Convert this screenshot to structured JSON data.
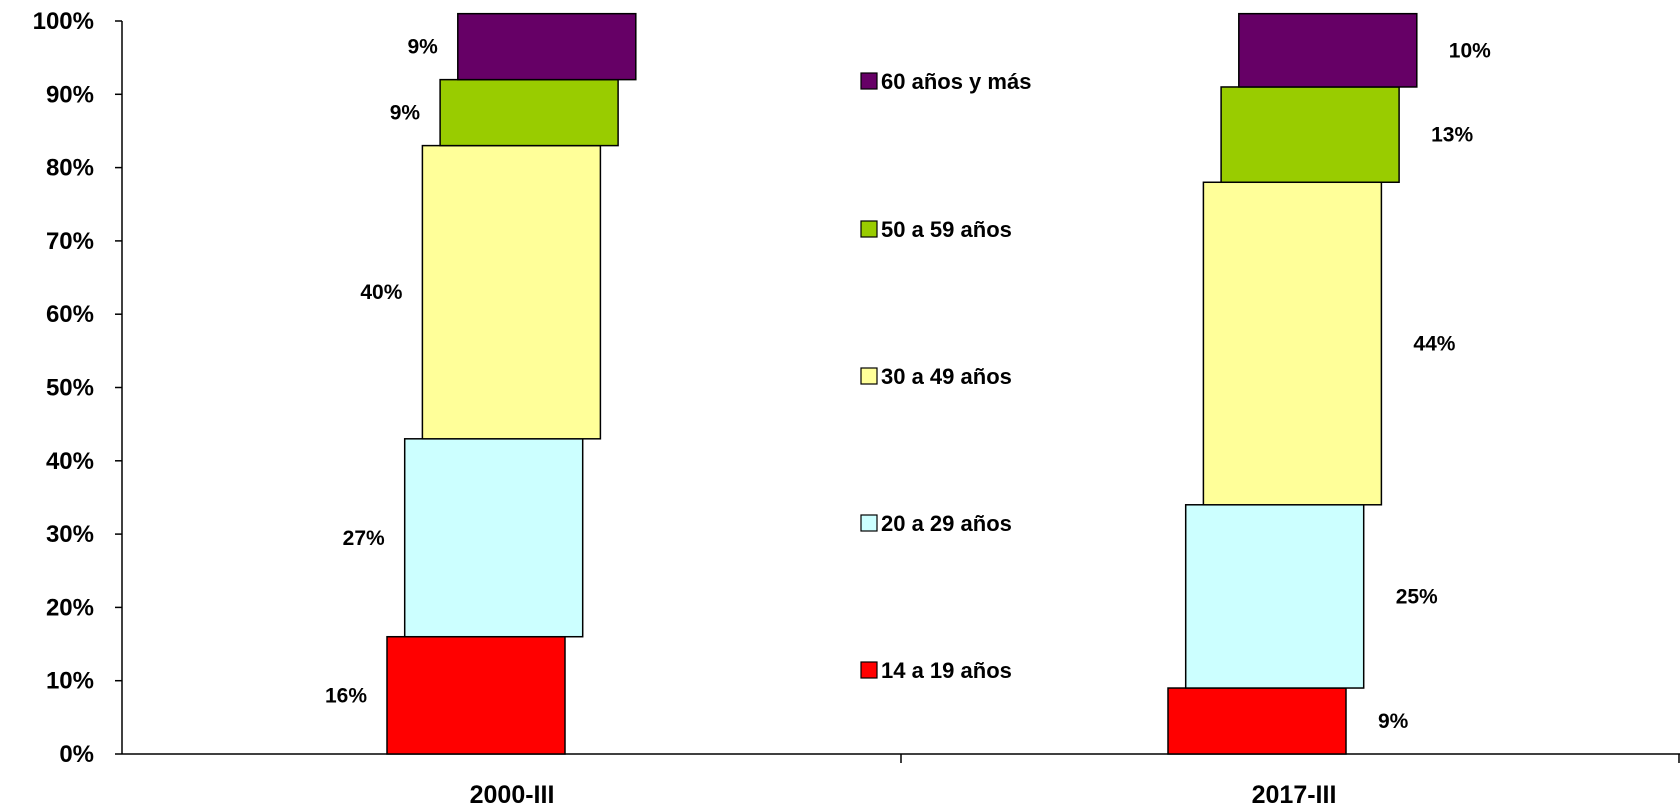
{
  "chart_data": {
    "type": "bar",
    "stacked": true,
    "categories": [
      "2000-III",
      "2017-III"
    ],
    "series": [
      {
        "name": "14 a 19 años",
        "values": [
          16,
          9
        ],
        "labels": [
          "16%",
          "9%"
        ],
        "color": "#ff0000"
      },
      {
        "name": "20 a 29 años",
        "values": [
          27,
          25
        ],
        "labels": [
          "27%",
          "25%"
        ],
        "color": "#ccffff"
      },
      {
        "name": "30 a 49 años",
        "values": [
          40,
          44
        ],
        "labels": [
          "40%",
          "44%"
        ],
        "color": "#ffff99"
      },
      {
        "name": "50 a 59 años",
        "values": [
          9,
          13
        ],
        "labels": [
          "9%",
          "13%"
        ],
        "color": "#99cc00"
      },
      {
        "name": "60 años y más",
        "values": [
          9,
          10
        ],
        "labels": [
          "9%",
          "10%"
        ],
        "color": "#660066"
      }
    ],
    "yticks": [
      "0%",
      "10%",
      "20%",
      "30%",
      "40%",
      "50%",
      "60%",
      "70%",
      "80%",
      "90%",
      "100%"
    ],
    "ylim": [
      0,
      100
    ],
    "legend": "center",
    "grid": false,
    "title": "",
    "xlabel": "",
    "ylabel": ""
  }
}
